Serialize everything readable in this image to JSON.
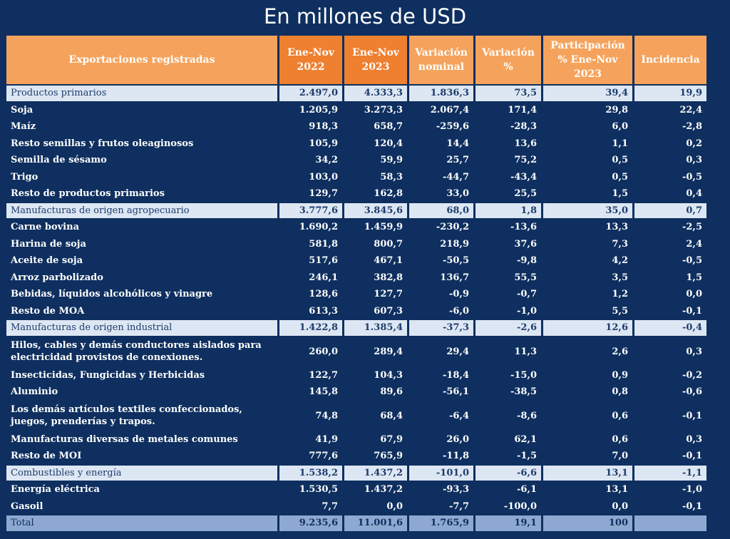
{
  "title": "En millones de USD",
  "headers": [
    "Exportaciones registradas",
    "Ene-Nov 2022",
    "Ene-Nov 2023",
    "Variación nominal",
    "Variación %",
    "Participación % Ene-Nov 2023",
    "Incidencia"
  ],
  "rows": [
    {
      "type": "cat",
      "label": "Productos primarios",
      "values": [
        "2.497,0",
        "4.333,3",
        "1.836,3",
        "73,5",
        "39,4",
        "19,9"
      ]
    },
    {
      "type": "item",
      "label": "Soja",
      "values": [
        "1.205,9",
        "3.273,3",
        "2.067,4",
        "171,4",
        "29,8",
        "22,4"
      ]
    },
    {
      "type": "item",
      "label": "Maíz",
      "values": [
        "918,3",
        "658,7",
        "-259,6",
        "-28,3",
        "6,0",
        "-2,8"
      ]
    },
    {
      "type": "item",
      "label": "Resto semillas y frutos oleaginosos",
      "values": [
        "105,9",
        "120,4",
        "14,4",
        "13,6",
        "1,1",
        "0,2"
      ]
    },
    {
      "type": "item",
      "label": "Semilla de sésamo",
      "values": [
        "34,2",
        "59,9",
        "25,7",
        "75,2",
        "0,5",
        "0,3"
      ]
    },
    {
      "type": "item",
      "label": "Trigo",
      "values": [
        "103,0",
        "58,3",
        "-44,7",
        "-43,4",
        "0,5",
        "-0,5"
      ]
    },
    {
      "type": "item",
      "label": "Resto de productos primarios",
      "values": [
        "129,7",
        "162,8",
        "33,0",
        "25,5",
        "1,5",
        "0,4"
      ]
    },
    {
      "type": "cat",
      "label": "Manufacturas de origen agropecuario",
      "values": [
        "3.777,6",
        "3.845,6",
        "68,0",
        "1,8",
        "35,0",
        "0,7"
      ]
    },
    {
      "type": "item",
      "label": "Carne bovina",
      "values": [
        "1.690,2",
        "1.459,9",
        "-230,2",
        "-13,6",
        "13,3",
        "-2,5"
      ]
    },
    {
      "type": "item",
      "label": "Harina de soja",
      "values": [
        "581,8",
        "800,7",
        "218,9",
        "37,6",
        "7,3",
        "2,4"
      ]
    },
    {
      "type": "item",
      "label": "Aceite de soja",
      "values": [
        "517,6",
        "467,1",
        "-50,5",
        "-9,8",
        "4,2",
        "-0,5"
      ]
    },
    {
      "type": "item",
      "label": "Arroz parbolizado",
      "values": [
        "246,1",
        "382,8",
        "136,7",
        "55,5",
        "3,5",
        "1,5"
      ]
    },
    {
      "type": "item",
      "label": "Bebidas, líquidos alcohólicos y vinagre",
      "values": [
        "128,6",
        "127,7",
        "-0,9",
        "-0,7",
        "1,2",
        "0,0"
      ]
    },
    {
      "type": "item",
      "label": "Resto de MOA",
      "values": [
        "613,3",
        "607,3",
        "-6,0",
        "-1,0",
        "5,5",
        "-0,1"
      ]
    },
    {
      "type": "cat",
      "label": "Manufacturas de origen industrial",
      "values": [
        "1.422,8",
        "1.385,4",
        "-37,3",
        "-2,6",
        "12,6",
        "-0,4"
      ]
    },
    {
      "type": "tall",
      "label": "Hilos, cables y demás conductores aislados para electricidad provistos de conexiones.",
      "values": [
        "260,0",
        "289,4",
        "29,4",
        "11,3",
        "2,6",
        "0,3"
      ]
    },
    {
      "type": "item",
      "label": "Insecticidas, Fungicidas y Herbicidas",
      "values": [
        "122,7",
        "104,3",
        "-18,4",
        "-15,0",
        "0,9",
        "-0,2"
      ]
    },
    {
      "type": "item",
      "label": "Aluminio",
      "values": [
        "145,8",
        "89,6",
        "-56,1",
        "-38,5",
        "0,8",
        "-0,6"
      ]
    },
    {
      "type": "tall",
      "label": "Los demás artículos textiles confeccionados, juegos, prenderías y trapos.",
      "values": [
        "74,8",
        "68,4",
        "-6,4",
        "-8,6",
        "0,6",
        "-0,1"
      ]
    },
    {
      "type": "item",
      "label": "Manufacturas diversas de metales comunes",
      "values": [
        "41,9",
        "67,9",
        "26,0",
        "62,1",
        "0,6",
        "0,3"
      ]
    },
    {
      "type": "item",
      "label": "Resto de MOI",
      "values": [
        "777,6",
        "765,9",
        "-11,8",
        "-1,5",
        "7,0",
        "-0,1"
      ]
    },
    {
      "type": "cat",
      "label": "Combustibles y energía",
      "values": [
        "1.538,2",
        "1.437,2",
        "-101,0",
        "-6,6",
        "13,1",
        "-1,1"
      ]
    },
    {
      "type": "item",
      "label": "Energía eléctrica",
      "values": [
        "1.530,5",
        "1.437,2",
        "-93,3",
        "-6,1",
        "13,1",
        "-1,0"
      ]
    },
    {
      "type": "item",
      "label": "Gasoil",
      "values": [
        "7,7",
        "0,0",
        "-7,7",
        "-100,0",
        "0,0",
        "-0,1"
      ]
    },
    {
      "type": "total",
      "label": "Total",
      "values": [
        "9.235,6",
        "11.001,6",
        "1.765,9",
        "19,1",
        "100",
        ""
      ]
    }
  ]
}
